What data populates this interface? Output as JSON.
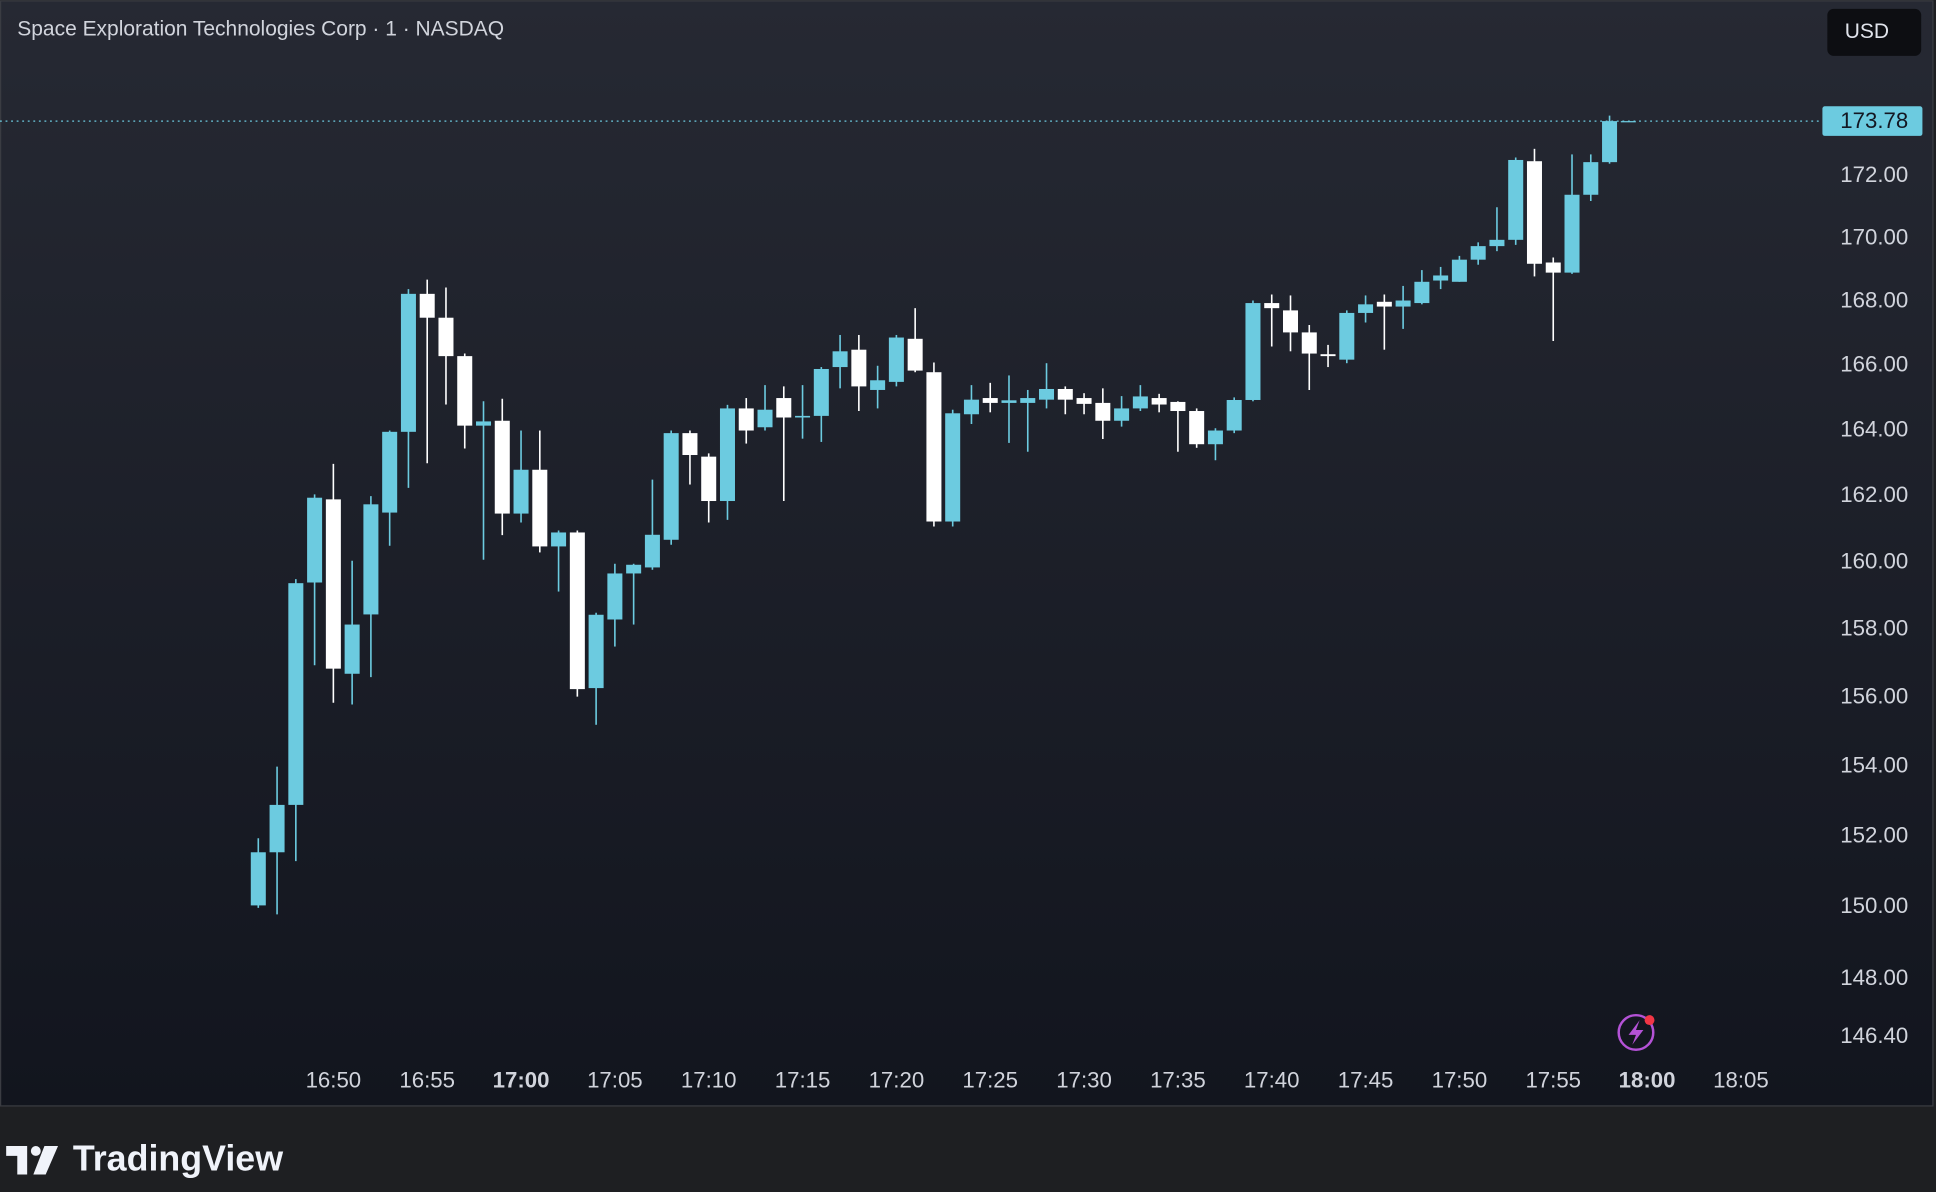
{
  "chart_data": {
    "type": "candlestick",
    "title": "Space Exploration Technologies Corp · 1 · NASDAQ",
    "currency": "USD",
    "up_color": "#6ccbe0",
    "down_color": "#ffffff",
    "log_scale": true,
    "grid": false,
    "x": [
      "16:46",
      "16:47",
      "16:48",
      "16:49",
      "16:50",
      "16:51",
      "16:52",
      "16:53",
      "16:54",
      "16:55",
      "16:56",
      "16:57",
      "16:58",
      "16:59",
      "17:00",
      "17:01",
      "17:02",
      "17:03",
      "17:04",
      "17:05",
      "17:06",
      "17:07",
      "17:08",
      "17:09",
      "17:10",
      "17:11",
      "17:12",
      "17:13",
      "17:14",
      "17:15",
      "17:16",
      "17:17",
      "17:18",
      "17:19",
      "17:20",
      "17:21",
      "17:22",
      "17:23",
      "17:24",
      "17:25",
      "17:26",
      "17:27",
      "17:28",
      "17:29",
      "17:30",
      "17:31",
      "17:32",
      "17:33",
      "17:34",
      "17:35",
      "17:36",
      "17:37",
      "17:38",
      "17:39",
      "17:40",
      "17:41",
      "17:42",
      "17:43",
      "17:44",
      "17:45",
      "17:46",
      "17:47",
      "17:48",
      "17:49",
      "17:50",
      "17:51",
      "17:52",
      "17:53",
      "17:54",
      "17:55",
      "17:56",
      "17:57",
      "17:58",
      "17:59"
    ],
    "open": [
      150.05,
      151.55,
      152.9,
      159.4,
      161.9,
      156.7,
      158.45,
      161.5,
      163.96,
      168.25,
      167.5,
      166.3,
      164.15,
      164.3,
      161.47,
      162.8,
      160.48,
      160.9,
      156.28,
      158.3,
      159.67,
      159.85,
      160.68,
      163.92,
      163.2,
      161.85,
      164.68,
      164.1,
      165.0,
      164.4,
      164.45,
      165.96,
      166.5,
      165.25,
      165.5,
      166.84,
      165.8,
      161.23,
      164.5,
      165.0,
      164.85,
      164.85,
      164.95,
      165.28,
      165.0,
      164.85,
      164.3,
      164.68,
      165.0,
      164.88,
      164.6,
      163.58,
      164.0,
      164.94,
      167.96,
      167.73,
      167.04,
      166.36,
      166.19,
      167.65,
      168.0,
      167.85,
      167.96,
      168.67,
      168.63,
      169.33,
      169.76,
      169.96,
      172.48,
      169.24,
      168.92,
      171.4,
      172.45,
      173.78
    ],
    "high": [
      151.95,
      154.0,
      159.5,
      162.05,
      162.98,
      160.05,
      162.0,
      164.0,
      168.4,
      168.7,
      168.45,
      166.38,
      164.9,
      164.98,
      164.0,
      164.0,
      160.96,
      160.96,
      158.5,
      159.96,
      159.96,
      162.5,
      164.0,
      164.0,
      163.3,
      164.79,
      165.0,
      165.4,
      165.36,
      165.4,
      165.96,
      166.96,
      166.96,
      166.0,
      166.96,
      167.8,
      166.1,
      164.64,
      165.4,
      165.47,
      165.7,
      165.25,
      166.08,
      165.36,
      165.15,
      165.3,
      165.06,
      165.4,
      165.13,
      164.9,
      164.68,
      164.07,
      165.02,
      168.04,
      168.23,
      168.2,
      167.27,
      166.65,
      167.73,
      168.2,
      168.23,
      168.5,
      169.0,
      169.1,
      169.45,
      169.88,
      171.0,
      172.6,
      172.88,
      169.4,
      172.7,
      172.7,
      173.96,
      173.78
    ],
    "low": [
      149.98,
      149.8,
      151.3,
      156.95,
      155.85,
      155.8,
      156.6,
      160.5,
      162.25,
      163.0,
      164.8,
      163.45,
      160.08,
      160.82,
      161.2,
      160.3,
      159.13,
      156.03,
      155.21,
      157.5,
      158.15,
      159.78,
      160.53,
      162.35,
      161.2,
      161.28,
      163.6,
      164.0,
      161.85,
      163.75,
      163.65,
      165.3,
      164.6,
      164.68,
      165.36,
      165.8,
      161.08,
      161.08,
      164.2,
      164.56,
      163.62,
      163.35,
      164.68,
      164.5,
      164.5,
      163.74,
      164.12,
      164.6,
      164.56,
      163.35,
      163.47,
      163.09,
      163.92,
      164.9,
      166.6,
      166.45,
      165.25,
      165.96,
      166.08,
      167.35,
      166.5,
      167.15,
      167.92,
      168.4,
      168.63,
      169.17,
      169.6,
      169.8,
      168.8,
      166.77,
      168.88,
      171.2,
      172.4,
      173.78
    ],
    "close": [
      151.55,
      152.9,
      159.38,
      161.95,
      156.85,
      158.15,
      161.75,
      163.96,
      168.25,
      167.5,
      166.3,
      164.15,
      164.28,
      161.47,
      162.8,
      160.48,
      160.9,
      156.25,
      158.44,
      159.67,
      159.93,
      160.83,
      163.92,
      163.25,
      161.85,
      164.68,
      164.0,
      164.64,
      164.4,
      164.45,
      165.9,
      166.45,
      165.36,
      165.55,
      166.88,
      165.85,
      161.23,
      164.53,
      164.95,
      164.85,
      164.93,
      165.0,
      165.28,
      164.95,
      164.82,
      164.3,
      164.68,
      165.05,
      164.8,
      164.6,
      163.58,
      164.0,
      164.94,
      167.96,
      167.8,
      167.04,
      166.38,
      166.3,
      167.65,
      167.92,
      167.85,
      168.04,
      168.63,
      168.83,
      169.33,
      169.76,
      169.96,
      172.52,
      169.2,
      168.92,
      171.4,
      172.45,
      173.78,
      173.78
    ],
    "last_price": 173.78,
    "xlim": [
      "16:32",
      "18:09"
    ],
    "xticks": [
      "16:50",
      "16:55",
      "17:00",
      "17:05",
      "17:10",
      "17:15",
      "17:20",
      "17:25",
      "17:30",
      "17:35",
      "17:40",
      "17:45",
      "17:50",
      "17:55",
      "18:00",
      "18:05"
    ],
    "ylim": [
      145.78,
      176.12
    ],
    "yticks": [
      {
        "value": 146.4,
        "label": "146.40"
      },
      {
        "value": 148,
        "label": "148.00"
      },
      {
        "value": 150,
        "label": "150.00"
      },
      {
        "value": 152,
        "label": "152.00"
      },
      {
        "value": 154,
        "label": "154.00"
      },
      {
        "value": 156,
        "label": "156.00"
      },
      {
        "value": 158,
        "label": "158.00"
      },
      {
        "value": 160,
        "label": "160.00"
      },
      {
        "value": 162,
        "label": "162.00"
      },
      {
        "value": 164,
        "label": "164.00"
      },
      {
        "value": 166,
        "label": "166.00"
      },
      {
        "value": 168,
        "label": "168.00"
      },
      {
        "value": 170,
        "label": "170.00"
      },
      {
        "value": 172,
        "label": "172.00"
      }
    ]
  },
  "footer": {
    "brand": "TradingView"
  }
}
